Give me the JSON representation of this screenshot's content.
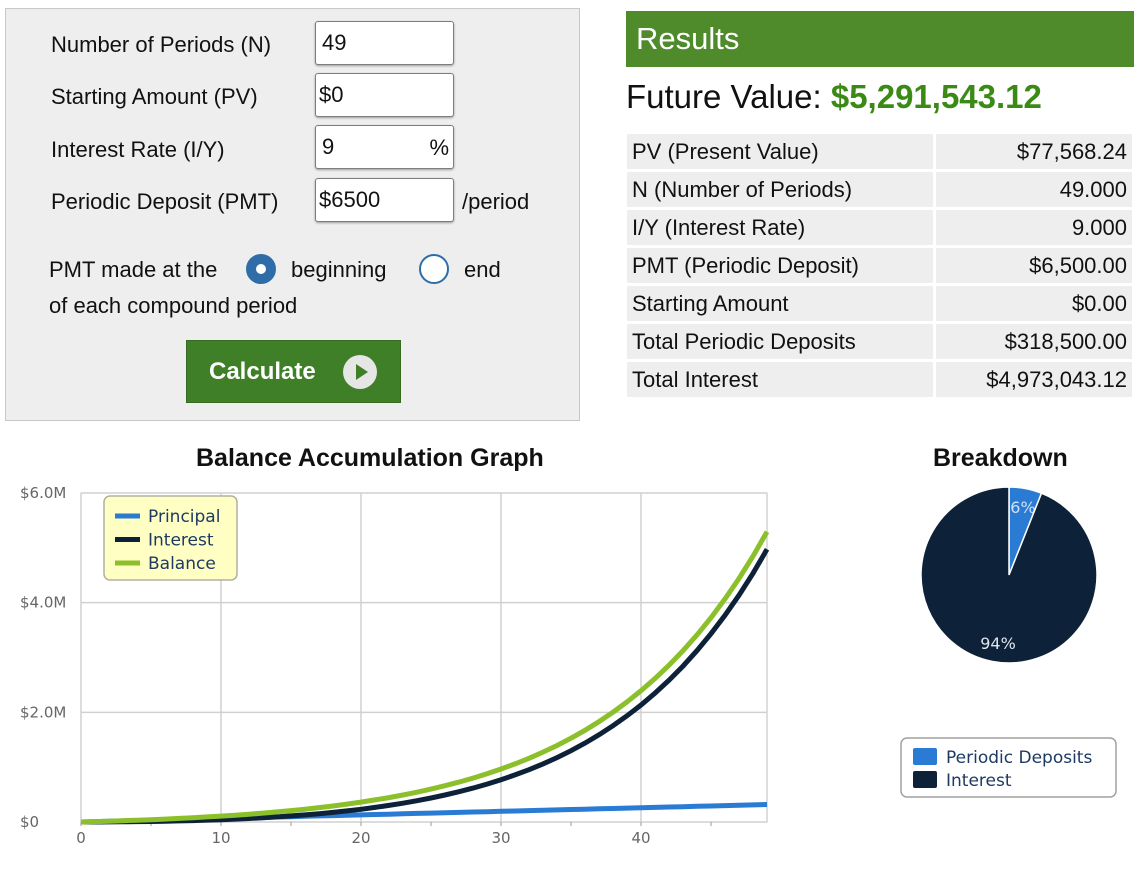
{
  "form": {
    "n_label": "Number of Periods (N)",
    "n_value": "49",
    "pv_label": "Starting Amount (PV)",
    "pv_value": "$0",
    "rate_label": "Interest Rate (I/Y)",
    "rate_value": "9",
    "rate_unit": "%",
    "pmt_label": "Periodic Deposit (PMT)",
    "pmt_value": "$6500",
    "pmt_suffix": "/period",
    "timing_prefix": "PMT made at the",
    "timing_beginning": "beginning",
    "timing_end": "end",
    "timing_suffix": "of each compound period",
    "timing_selected": "beginning",
    "calculate_label": "Calculate"
  },
  "results": {
    "title": "Results",
    "fv_label": "Future Value:",
    "fv_value": "$5,291,543.12",
    "rows": [
      {
        "label": "PV (Present Value)",
        "value": "$77,568.24"
      },
      {
        "label": "N (Number of Periods)",
        "value": "49.000"
      },
      {
        "label": "I/Y (Interest Rate)",
        "value": "9.000"
      },
      {
        "label": "PMT (Periodic Deposit)",
        "value": "$6,500.00"
      },
      {
        "label": "Starting Amount",
        "value": "$0.00"
      },
      {
        "label": "Total Periodic Deposits",
        "value": "$318,500.00"
      },
      {
        "label": "Total Interest",
        "value": "$4,973,043.12"
      }
    ]
  },
  "colors": {
    "principal": "#2a7bd4",
    "interest": "#0d2238",
    "balance": "#8cc02b",
    "accent_green": "#4f8a2b"
  },
  "chart_data": [
    {
      "type": "line",
      "title": "Balance Accumulation Graph",
      "xlim": [
        0,
        49
      ],
      "ylim": [
        0,
        6000000
      ],
      "x_ticks": [
        "0",
        "10",
        "20",
        "30",
        "40"
      ],
      "y_ticks": [
        "$0",
        "$2.0M",
        "$4.0M",
        "$6.0M"
      ],
      "grid": true,
      "legend_position": "top-left",
      "rate": 0.09,
      "deposit": 6500,
      "periods": 49,
      "series": [
        {
          "name": "Principal",
          "color": "#2a7bd4"
        },
        {
          "name": "Interest",
          "color": "#0d2238"
        },
        {
          "name": "Balance",
          "color": "#8cc02b"
        }
      ]
    },
    {
      "type": "pie",
      "title": "Breakdown",
      "legend_position": "bottom-right",
      "slices": [
        {
          "name": "Periodic Deposits",
          "value": 318500,
          "label": "6%",
          "color": "#2a7bd4"
        },
        {
          "name": "Interest",
          "value": 4973043.12,
          "label": "94%",
          "color": "#0d2238"
        }
      ]
    }
  ]
}
